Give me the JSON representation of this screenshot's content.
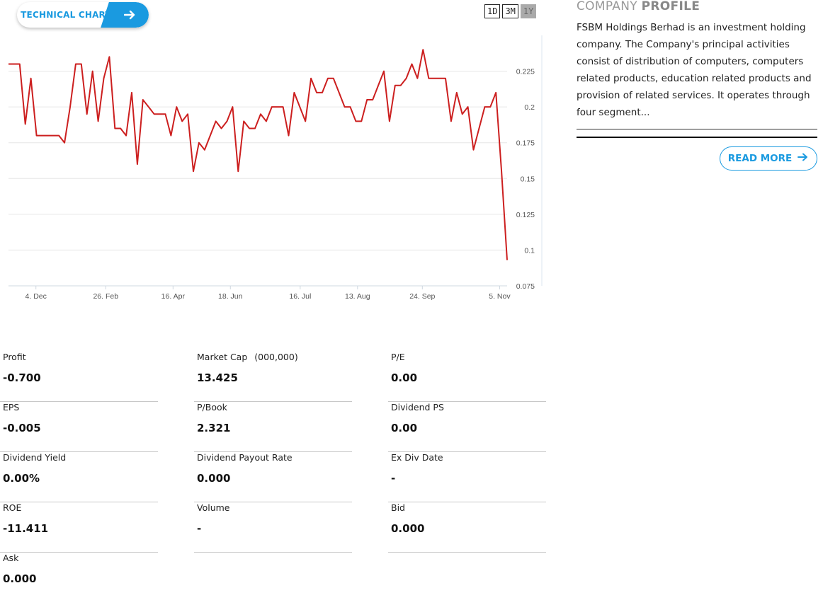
{
  "technical_chart_button": {
    "label": "TECHNICAL CHART",
    "icon": "arrow-right-icon"
  },
  "ranges": [
    "1D",
    "3M",
    "1Y"
  ],
  "active_range": "1Y",
  "chart_data": {
    "type": "line",
    "title": "",
    "xlabel": "",
    "ylabel": "",
    "ylim": [
      0.075,
      0.25
    ],
    "y_ticks": [
      "0.225",
      "0.2",
      "0.175",
      "0.15",
      "0.125",
      "0.1",
      "0.075"
    ],
    "x_ticks": [
      "4. Dec",
      "26. Feb",
      "16. Apr",
      "18. Jun",
      "16. Jul",
      "13. Aug",
      "24. Sep",
      "5. Nov"
    ],
    "line_color": "#cc1f1f",
    "grid": true,
    "series": [
      {
        "values": [
          0.23,
          0.23,
          0.23,
          0.188,
          0.22,
          0.18,
          0.18,
          0.18,
          0.18,
          0.18,
          0.175,
          0.2,
          0.23,
          0.23,
          0.195,
          0.225,
          0.19,
          0.22,
          0.235,
          0.185,
          0.185,
          0.18,
          0.21,
          0.16,
          0.205,
          0.2,
          0.195,
          0.195,
          0.195,
          0.18,
          0.2,
          0.19,
          0.195,
          0.155,
          0.175,
          0.17,
          0.18,
          0.19,
          0.185,
          0.19,
          0.2,
          0.155,
          0.19,
          0.185,
          0.185,
          0.195,
          0.19,
          0.2,
          0.2,
          0.2,
          0.18,
          0.21,
          0.2,
          0.19,
          0.22,
          0.21,
          0.21,
          0.22,
          0.22,
          0.21,
          0.2,
          0.2,
          0.19,
          0.19,
          0.205,
          0.205,
          0.215,
          0.225,
          0.19,
          0.215,
          0.215,
          0.22,
          0.23,
          0.22,
          0.24,
          0.22,
          0.22,
          0.22,
          0.22,
          0.19,
          0.21,
          0.195,
          0.2,
          0.17,
          0.185,
          0.2,
          0.2,
          0.21,
          0.155,
          0.093
        ]
      }
    ]
  },
  "profile": {
    "heading_light": "COMPANY",
    "heading_bold": "PROFILE",
    "description": "FSBM Holdings Berhad is an investment holding company. The Company's principal activities consist of distribution of computers, computers related products, education related products and provision of related services. It operates through four segment...",
    "read_more": "READ MORE"
  },
  "metrics": [
    {
      "label": "Profit",
      "value": "-0.700"
    },
    {
      "label": "Market Cap",
      "unit": "(000,000)",
      "value": "13.425"
    },
    {
      "label": "P/E",
      "value": "0.00"
    },
    {
      "label": "EPS",
      "value": "-0.005"
    },
    {
      "label": "P/Book",
      "value": "2.321"
    },
    {
      "label": "Dividend PS",
      "value": "0.00"
    },
    {
      "label": "Dividend Yield",
      "value": "0.00%"
    },
    {
      "label": "Dividend Payout Rate",
      "value": "0.000"
    },
    {
      "label": "Ex Div Date",
      "value": "-"
    },
    {
      "label": "ROE",
      "value": "-11.411"
    },
    {
      "label": "Volume",
      "value": "-"
    },
    {
      "label": "Bid",
      "value": "0.000"
    },
    {
      "label": "Ask",
      "value": "0.000"
    }
  ]
}
